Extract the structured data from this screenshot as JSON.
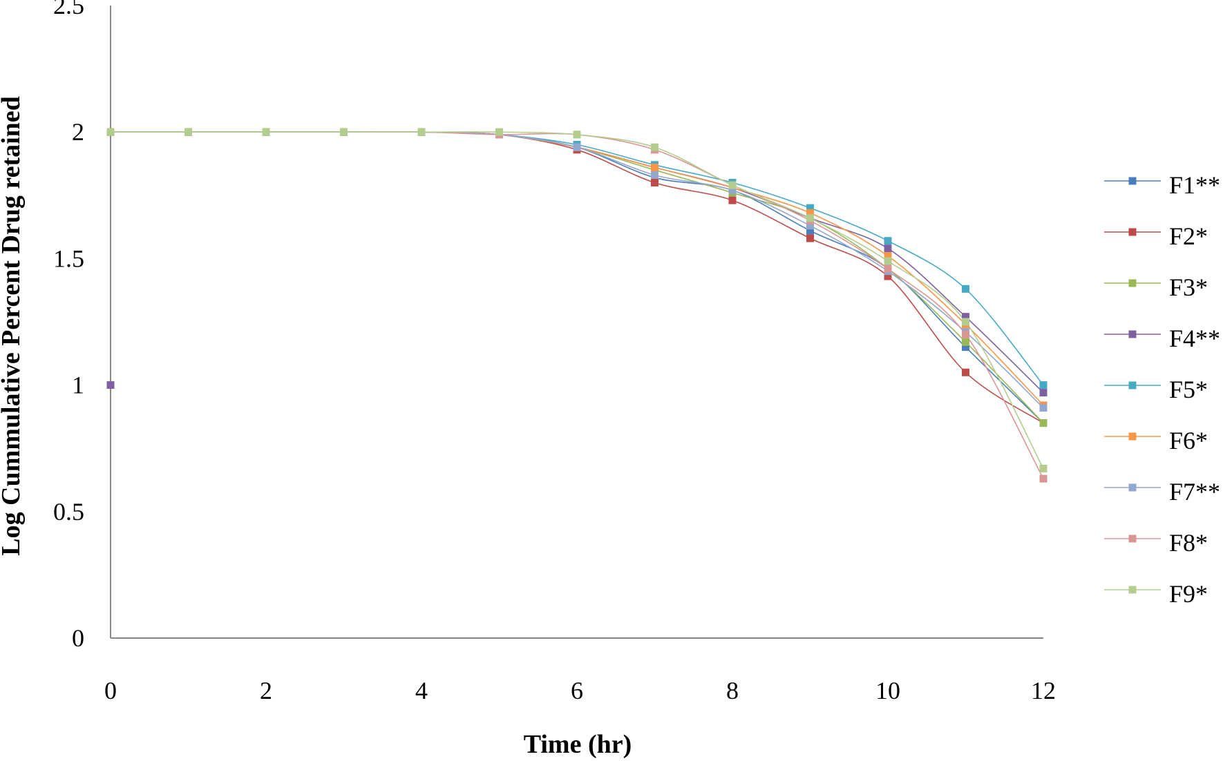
{
  "chart_data": {
    "type": "line",
    "title": "",
    "xlabel": "Time (hr)",
    "ylabel": "Log Cummulative Percent Drug retained",
    "xlim": [
      0,
      12
    ],
    "ylim": [
      0,
      2.5
    ],
    "x_ticks": [
      "0",
      "2",
      "4",
      "6",
      "8",
      "10",
      "12"
    ],
    "y_ticks": [
      "0",
      "0.5",
      "1",
      "1.5",
      "2",
      "2.5"
    ],
    "grid": false,
    "legend_position": "right",
    "x": [
      0,
      1,
      2,
      3,
      4,
      5,
      6,
      7,
      8,
      9,
      10,
      11,
      12
    ],
    "series": [
      {
        "name": "F1**",
        "color": "#4a7ebb",
        "values": [
          2,
          2,
          2,
          2,
          2,
          1.99,
          1.94,
          1.82,
          1.77,
          1.61,
          1.46,
          1.15,
          0.85
        ]
      },
      {
        "name": "F2*",
        "color": "#be4b48",
        "values": [
          2,
          2,
          2,
          2,
          2,
          1.99,
          1.93,
          1.8,
          1.73,
          1.58,
          1.43,
          1.05,
          0.85
        ]
      },
      {
        "name": "F3*",
        "color": "#98b954",
        "values": [
          2,
          2,
          2,
          2,
          2,
          1.99,
          1.94,
          1.85,
          1.76,
          1.66,
          1.46,
          1.17,
          0.85
        ]
      },
      {
        "name": "F4**",
        "color": "#7d60a0",
        "values": [
          1,
          2,
          2,
          2,
          2,
          1.99,
          1.94,
          1.86,
          1.78,
          1.66,
          1.54,
          1.27,
          0.97
        ]
      },
      {
        "name": "F5*",
        "color": "#46aac5",
        "values": [
          2,
          2,
          2,
          2,
          2,
          1.99,
          1.95,
          1.87,
          1.8,
          1.7,
          1.57,
          1.38,
          1
        ]
      },
      {
        "name": "F6*",
        "color": "#f79646",
        "values": [
          2,
          2,
          2,
          2,
          2,
          1.99,
          1.94,
          1.86,
          1.78,
          1.68,
          1.51,
          1.24,
          0.92
        ]
      },
      {
        "name": "F7**",
        "color": "#91a7ce",
        "values": [
          2,
          2,
          2,
          2,
          2,
          1.99,
          1.94,
          1.83,
          1.77,
          1.63,
          1.45,
          1.21,
          0.91
        ]
      },
      {
        "name": "F8*",
        "color": "#d99694",
        "values": [
          2,
          2,
          2,
          2,
          2,
          1.99,
          1.99,
          1.93,
          1.79,
          1.65,
          1.46,
          1.2,
          0.63
        ]
      },
      {
        "name": "F9*",
        "color": "#b3cd8f",
        "values": [
          2,
          2,
          2,
          2,
          2,
          2,
          1.99,
          1.94,
          1.79,
          1.66,
          1.49,
          1.25,
          0.67
        ]
      }
    ]
  }
}
